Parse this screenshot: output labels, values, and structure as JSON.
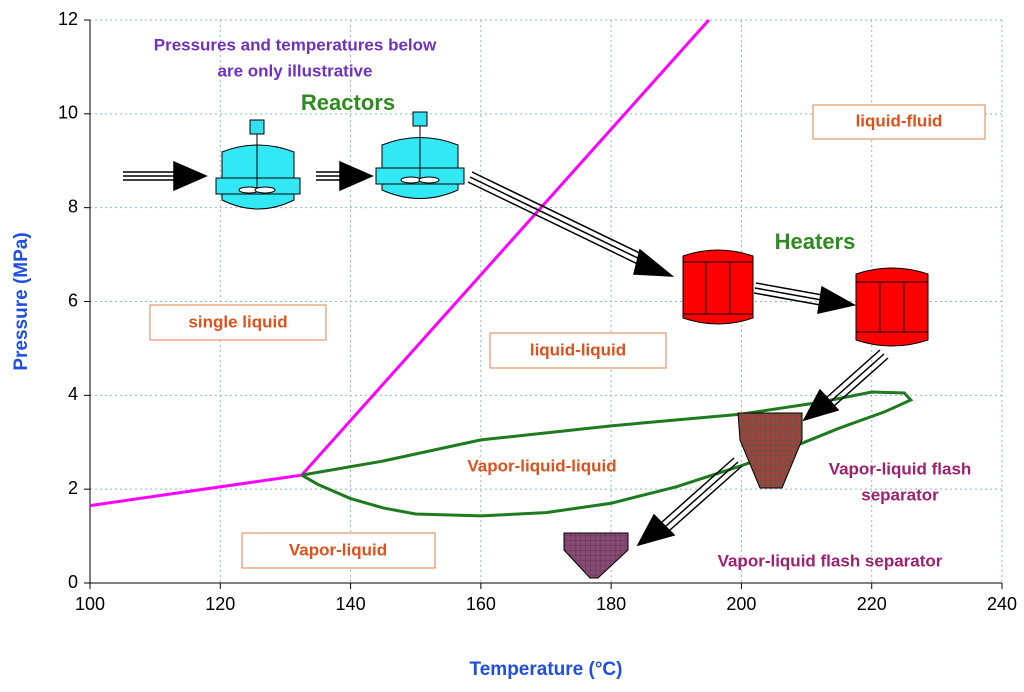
{
  "chart_data": {
    "type": "line",
    "x_label": "Temperature (°C)",
    "y_label": "Pressure (MPa)",
    "xlim": [
      100,
      240
    ],
    "xticks": [
      100,
      120,
      140,
      160,
      180,
      200,
      220,
      240
    ],
    "ylim": [
      0,
      12
    ],
    "yticks": [
      0,
      2,
      4,
      6,
      8,
      10,
      12
    ],
    "grid": true,
    "series": [
      {
        "color": "#ff00ff",
        "x": [
          100,
          132.5,
          195
        ],
        "values": [
          1.65,
          2.3,
          12
        ]
      },
      {
        "color": "#1e7a1e",
        "x": [
          132.5,
          145,
          160,
          180,
          200,
          212,
          220,
          225,
          226,
          222,
          215,
          207,
          200,
          190,
          180,
          170,
          160,
          150,
          145,
          140,
          135,
          132.5
        ],
        "values": [
          2.3,
          2.6,
          3.05,
          3.35,
          3.6,
          3.85,
          4.07,
          4.05,
          3.9,
          3.65,
          3.3,
          2.85,
          2.5,
          2.05,
          1.7,
          1.5,
          1.43,
          1.47,
          1.6,
          1.8,
          2.1,
          2.3
        ]
      }
    ],
    "annotations": [
      {
        "text": [
          "Pressures and temperatures below",
          "are only illustrative"
        ],
        "color": "#7030c0"
      },
      {
        "text": [
          "Reactors"
        ],
        "color": "#2e8b1e"
      },
      {
        "text": [
          "Heaters"
        ],
        "color": "#2e8b1e"
      },
      {
        "text": [
          "liquid-fluid"
        ],
        "color": "#e0501a",
        "boxed": true
      },
      {
        "text": [
          "single liquid"
        ],
        "color": "#e0501a",
        "boxed": true
      },
      {
        "text": [
          "liquid-liquid"
        ],
        "color": "#e0501a",
        "boxed": true
      },
      {
        "text": [
          "Vapor-liquid-liquid"
        ],
        "color": "#e0501a"
      },
      {
        "text": [
          "Vapor-liquid"
        ],
        "color": "#e0501a",
        "boxed": true
      },
      {
        "text": [
          "Vapor-liquid flash",
          "separator"
        ],
        "color": "#a0206e"
      },
      {
        "text": [
          "Vapor-liquid flash separator"
        ],
        "color": "#a0206e"
      }
    ]
  }
}
